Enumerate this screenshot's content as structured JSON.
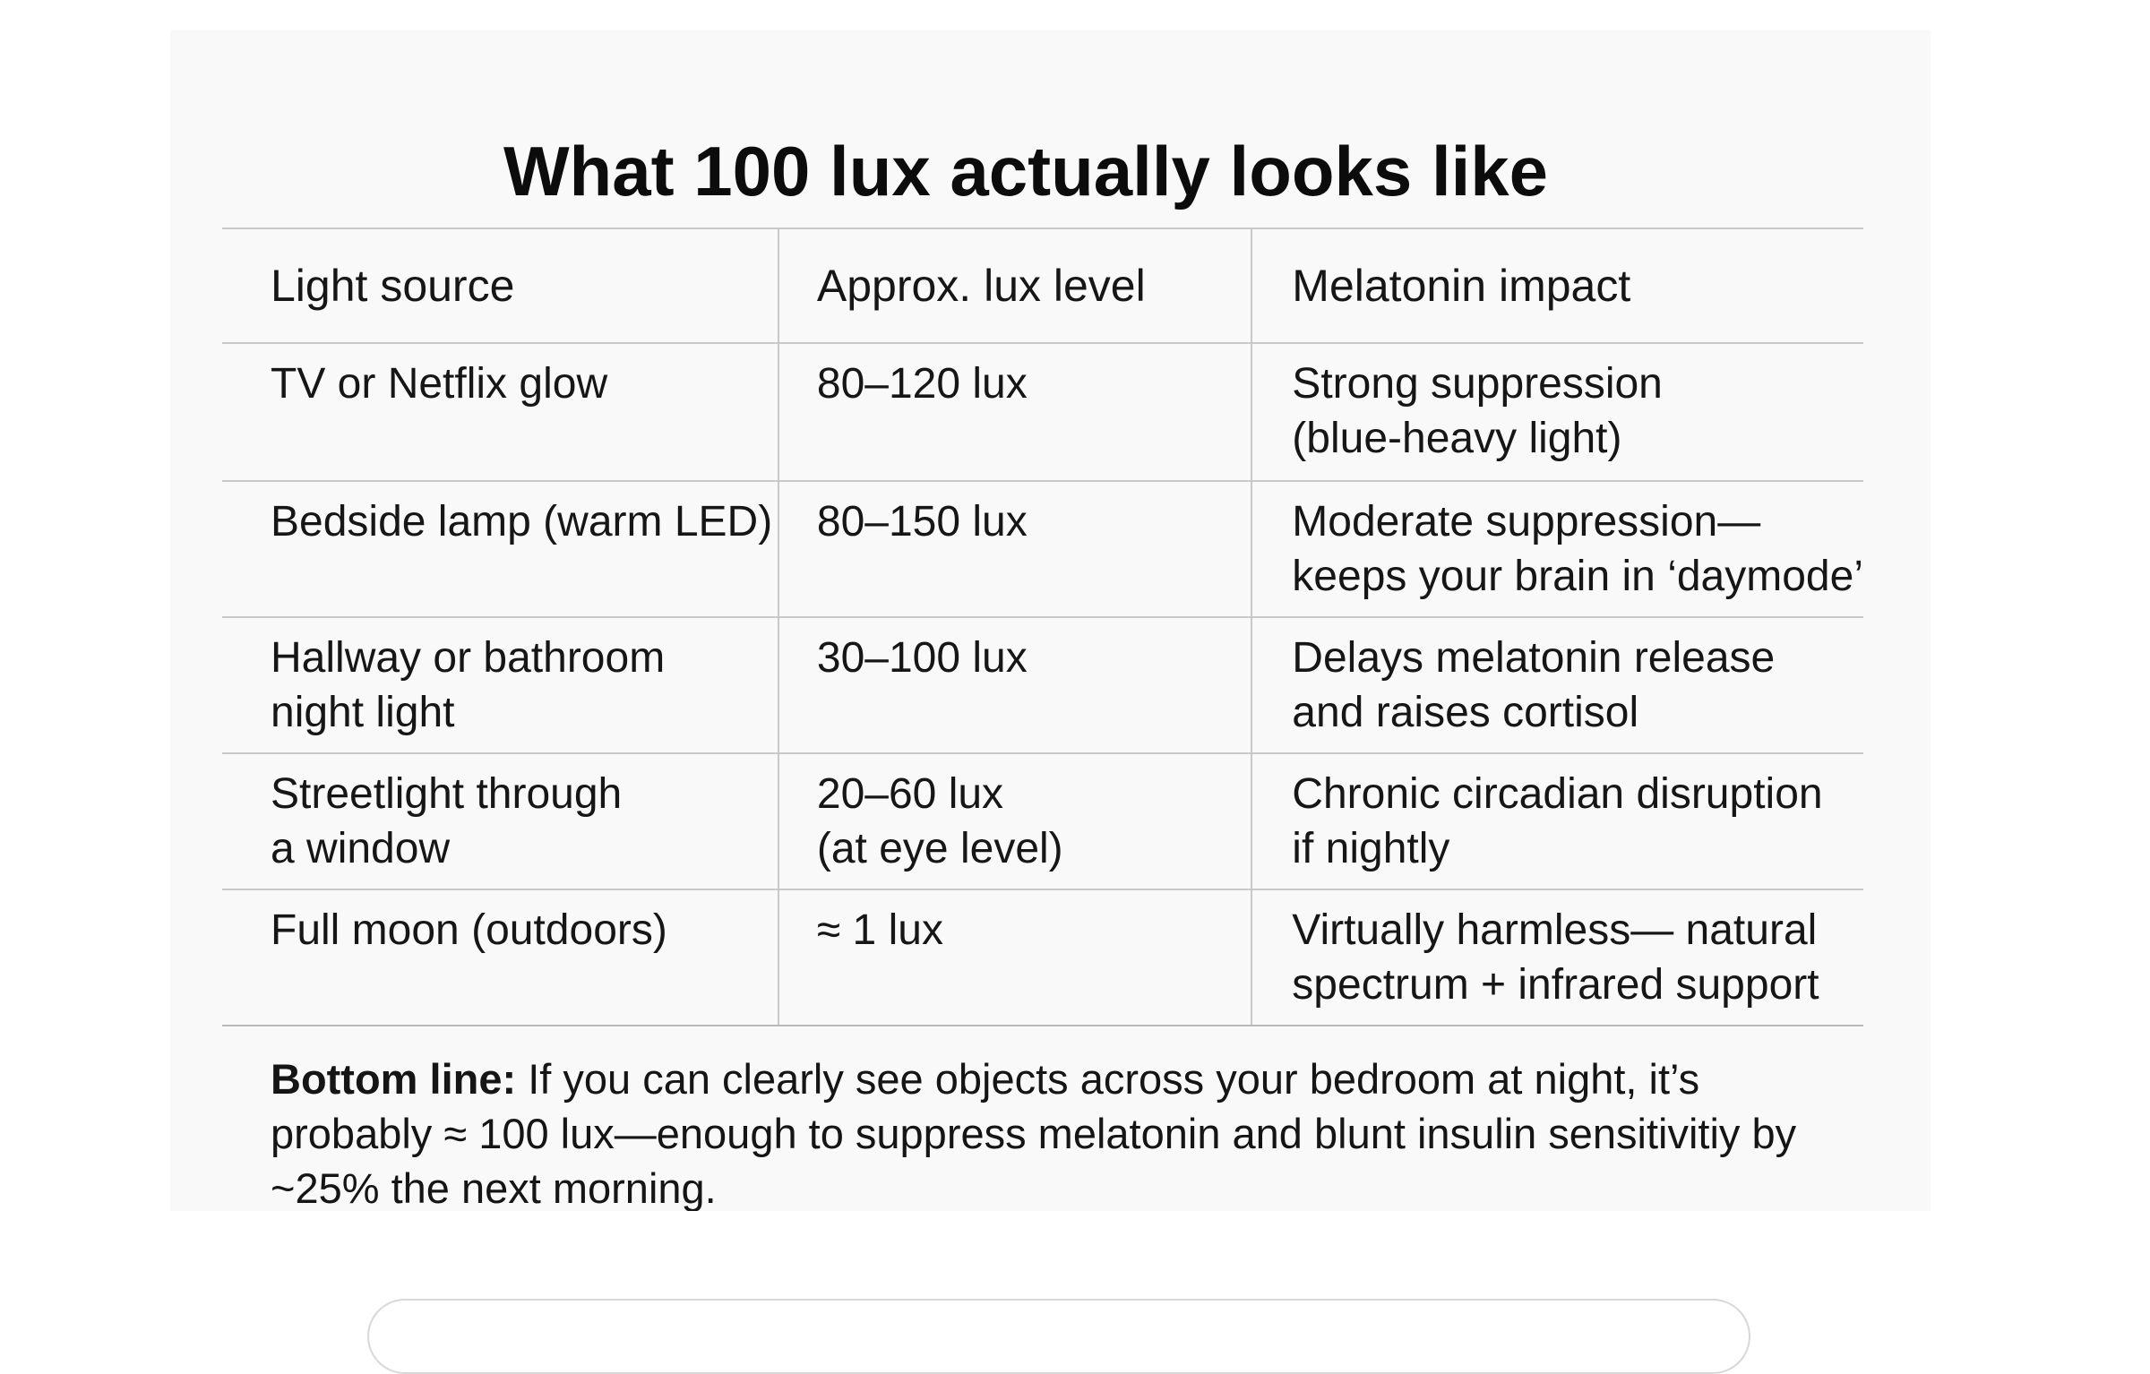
{
  "title": "What 100 lux actually looks like",
  "table": {
    "headers": [
      "Light source",
      "Approx. lux level",
      "Melatonin impact"
    ],
    "rows": [
      {
        "source": [
          "TV or Netflix glow"
        ],
        "lux": [
          "80–120 lux"
        ],
        "impact": [
          "Strong suppression",
          "(blue-heavy light)"
        ]
      },
      {
        "source": [
          "Bedside lamp (warm LED)"
        ],
        "lux": [
          "80–150 lux"
        ],
        "impact": [
          "Moderate suppression—",
          "keeps your brain in ‘daymode’"
        ]
      },
      {
        "source": [
          "Hallway or bathroom",
          "night light"
        ],
        "lux": [
          "30–100 lux"
        ],
        "impact": [
          "Delays melatonin release",
          "and raises cortisol"
        ]
      },
      {
        "source": [
          "Streetlight through",
          "a window"
        ],
        "lux": [
          "20–60 lux",
          "(at eye level)"
        ],
        "impact": [
          "Chronic circadian disruption",
          "if nightly"
        ]
      },
      {
        "source": [
          "Full moon (outdoors)"
        ],
        "lux": [
          "≈ 1 lux"
        ],
        "impact": [
          "Virtually harmless— natural",
          "spectrum + infrared support"
        ]
      }
    ]
  },
  "bottom_line": {
    "label": "Bottom line:",
    "lines": [
      " If you can clearly see objects across your bedroom at night, it’s",
      "probably ≈ 100 lux—enough to suppress melatonin and blunt insulin sensitivitiy by",
      "~25% the next morning."
    ]
  }
}
